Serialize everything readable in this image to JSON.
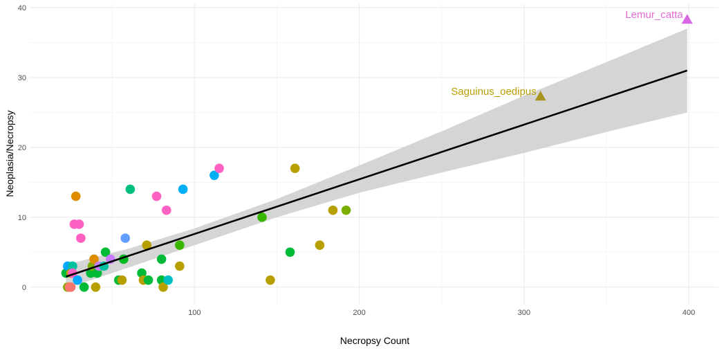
{
  "chart_data": {
    "type": "scatter",
    "title": "",
    "xlabel": "Necropsy Count",
    "ylabel": "Neoplasia/Necropsy",
    "xlim": [
      0,
      418
    ],
    "ylim": [
      -2.5,
      40.5
    ],
    "x_ticks": [
      100,
      200,
      300,
      400
    ],
    "y_ticks": [
      0,
      10,
      20,
      30,
      40
    ],
    "grid": true,
    "legend": "none",
    "points": [
      {
        "x": 22,
        "y": 2,
        "color": "#00BA38"
      },
      {
        "x": 23,
        "y": 3,
        "color": "#00A9FF"
      },
      {
        "x": 23,
        "y": 0,
        "color": "#7CAE00"
      },
      {
        "x": 24,
        "y": 0,
        "color": "#F8766D"
      },
      {
        "x": 25,
        "y": 2,
        "color": "#B79F00"
      },
      {
        "x": 25,
        "y": 0,
        "color": "#F8766D"
      },
      {
        "x": 26,
        "y": 3,
        "color": "#00C19F"
      },
      {
        "x": 26,
        "y": 2,
        "color": "#FF61C3"
      },
      {
        "x": 27,
        "y": 9,
        "color": "#FF61C3"
      },
      {
        "x": 28,
        "y": 13,
        "color": "#DE8C00"
      },
      {
        "x": 29,
        "y": 1,
        "color": "#00A9FF"
      },
      {
        "x": 30,
        "y": 9,
        "color": "#FF61C3"
      },
      {
        "x": 31,
        "y": 7,
        "color": "#FF61C3"
      },
      {
        "x": 33,
        "y": 0,
        "color": "#00BA38"
      },
      {
        "x": 37,
        "y": 2,
        "color": "#00BA38"
      },
      {
        "x": 38,
        "y": 3,
        "color": "#7CAE00"
      },
      {
        "x": 39,
        "y": 4,
        "color": "#DE8C00"
      },
      {
        "x": 40,
        "y": 0,
        "color": "#B79F00"
      },
      {
        "x": 41,
        "y": 2,
        "color": "#00BA38"
      },
      {
        "x": 42,
        "y": 3,
        "color": "#C77CFF"
      },
      {
        "x": 45,
        "y": 3,
        "color": "#00C19F"
      },
      {
        "x": 46,
        "y": 5,
        "color": "#00BA38"
      },
      {
        "x": 49,
        "y": 4,
        "color": "#C77CFF"
      },
      {
        "x": 54,
        "y": 1,
        "color": "#00BA38"
      },
      {
        "x": 56,
        "y": 1,
        "color": "#B79F00"
      },
      {
        "x": 57,
        "y": 4,
        "color": "#00B81F"
      },
      {
        "x": 58,
        "y": 7,
        "color": "#619CFF"
      },
      {
        "x": 61,
        "y": 14,
        "color": "#00BF7D"
      },
      {
        "x": 68,
        "y": 2,
        "color": "#00BA38"
      },
      {
        "x": 69,
        "y": 1,
        "color": "#B79F00"
      },
      {
        "x": 71,
        "y": 6,
        "color": "#B79F00"
      },
      {
        "x": 72,
        "y": 1,
        "color": "#00BA38"
      },
      {
        "x": 77,
        "y": 13,
        "color": "#FF61C3"
      },
      {
        "x": 80,
        "y": 4,
        "color": "#00BA38"
      },
      {
        "x": 80,
        "y": 1,
        "color": "#00BA38"
      },
      {
        "x": 81,
        "y": 0,
        "color": "#B79F00"
      },
      {
        "x": 83,
        "y": 11,
        "color": "#FF61C3"
      },
      {
        "x": 84,
        "y": 1,
        "color": "#00BFC4"
      },
      {
        "x": 91,
        "y": 6,
        "color": "#39B600"
      },
      {
        "x": 91,
        "y": 3,
        "color": "#B79F00"
      },
      {
        "x": 93,
        "y": 14,
        "color": "#00B0F6"
      },
      {
        "x": 112,
        "y": 16,
        "color": "#00B0F6"
      },
      {
        "x": 115,
        "y": 17,
        "color": "#FF61C3"
      },
      {
        "x": 141,
        "y": 10,
        "color": "#39B600"
      },
      {
        "x": 146,
        "y": 1,
        "color": "#B79F00"
      },
      {
        "x": 158,
        "y": 5,
        "color": "#00BA38"
      },
      {
        "x": 161,
        "y": 17,
        "color": "#B79F00"
      },
      {
        "x": 176,
        "y": 6,
        "color": "#B79F00"
      },
      {
        "x": 184,
        "y": 11,
        "color": "#B79F00"
      },
      {
        "x": 192,
        "y": 11,
        "color": "#7CAE00"
      }
    ],
    "highlighted": [
      {
        "x": 310,
        "y": 27.3,
        "label": "Saguinus_oedipus",
        "color": "#A89420",
        "label_color": "#B79F00"
      },
      {
        "x": 399,
        "y": 38.3,
        "label": "Lemur_catta",
        "color": "#D866E0",
        "label_color": "#E36AD4"
      }
    ],
    "fit_line": {
      "x": [
        22,
        399
      ],
      "y": [
        1.5,
        31.0
      ],
      "color": "#000000"
    },
    "confidence_band": {
      "upper": [
        [
          22,
          3.2
        ],
        [
          60,
          5.5
        ],
        [
          100,
          8.4
        ],
        [
          150,
          12.6
        ],
        [
          200,
          17.4
        ],
        [
          250,
          22.3
        ],
        [
          300,
          27.4
        ],
        [
          350,
          32.2
        ],
        [
          399,
          37.0
        ]
      ],
      "lower": [
        [
          22,
          -0.2
        ],
        [
          60,
          2.8
        ],
        [
          100,
          6.0
        ],
        [
          150,
          10.0
        ],
        [
          200,
          13.5
        ],
        [
          250,
          16.4
        ],
        [
          300,
          19.2
        ],
        [
          350,
          22.2
        ],
        [
          399,
          25.0
        ]
      ],
      "color": "#D3D3D3"
    }
  }
}
